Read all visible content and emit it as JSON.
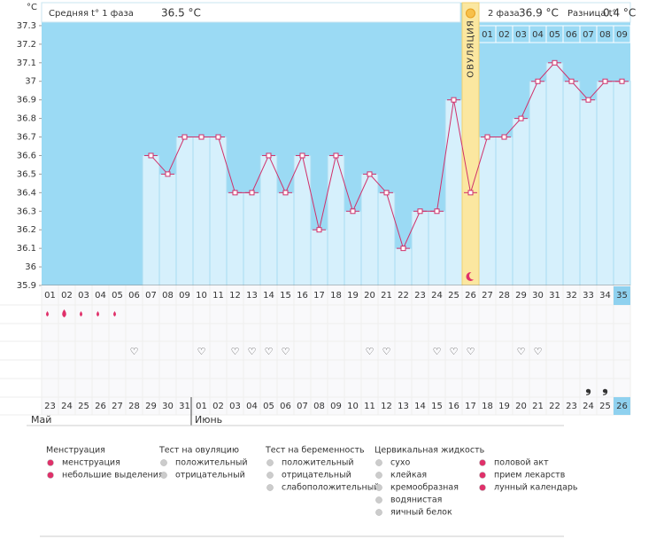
{
  "chart_data": {
    "type": "line",
    "y_unit": "°C",
    "phase1_label": "Средняя t° 1 фаза",
    "phase1_value": "36.5 °C",
    "ovulation_label": "ОВУЛЯЦИЯ",
    "ovulation_day": "26",
    "phase2_label": "2 фаза",
    "phase2_value": "36.9 °C",
    "diff_label": "Разница t°",
    "diff_value": "0.4 °C",
    "phase2_days": [
      "01",
      "02",
      "03",
      "04",
      "05",
      "06",
      "07",
      "08",
      "09"
    ],
    "categories": [
      "01",
      "02",
      "03",
      "04",
      "05",
      "06",
      "07",
      "08",
      "09",
      "10",
      "11",
      "12",
      "13",
      "14",
      "15",
      "16",
      "17",
      "18",
      "19",
      "20",
      "21",
      "22",
      "23",
      "24",
      "25",
      "26",
      "27",
      "28",
      "29",
      "30",
      "31",
      "32",
      "33",
      "34",
      "35"
    ],
    "values": [
      null,
      null,
      null,
      null,
      null,
      null,
      36.6,
      36.5,
      36.7,
      36.7,
      36.7,
      36.4,
      36.4,
      36.6,
      36.4,
      36.6,
      36.2,
      36.6,
      36.3,
      36.5,
      36.4,
      36.1,
      36.3,
      36.3,
      36.9,
      36.4,
      36.7,
      36.7,
      36.8,
      37,
      37.1,
      37,
      36.9,
      37,
      37
    ],
    "color": "#d0306a",
    "ylim": [
      35.9,
      37.4
    ],
    "yticks": [
      35.9,
      36,
      36.1,
      36.2,
      36.3,
      36.4,
      36.5,
      36.6,
      36.7,
      36.8,
      36.9,
      37,
      37.1,
      37.2,
      37.3
    ],
    "dates": [
      "23",
      "24",
      "25",
      "26",
      "27",
      "28",
      "29",
      "30",
      "31",
      "01",
      "02",
      "03",
      "04",
      "05",
      "06",
      "07",
      "08",
      "09",
      "10",
      "11",
      "12",
      "13",
      "14",
      "15",
      "16",
      "17",
      "18",
      "19",
      "20",
      "21",
      "22",
      "23",
      "24",
      "25",
      "26"
    ],
    "weekend": [
      false,
      false,
      true,
      true,
      false,
      false,
      false,
      false,
      false,
      true,
      true,
      false,
      false,
      false,
      false,
      false,
      true,
      true,
      false,
      false,
      false,
      false,
      false,
      true,
      true,
      false,
      false,
      false,
      false,
      false,
      true,
      true,
      false,
      false,
      false
    ],
    "months": [
      {
        "label": "Май",
        "index": 0
      },
      {
        "label": "Июнь",
        "index": 9
      }
    ],
    "menstruation_days": [
      "01",
      "02",
      "03",
      "04",
      "05"
    ],
    "heavy_days": [
      "02"
    ],
    "intercourse_days": [
      "06",
      "10",
      "12",
      "13",
      "14",
      "15",
      "20",
      "21",
      "24",
      "25",
      "26",
      "29",
      "30"
    ],
    "cervical_days": [
      "33",
      "34"
    ]
  },
  "legend": {
    "columns": [
      {
        "title": "Менструация",
        "items": [
          "менструация",
          "небольшие выделения"
        ]
      },
      {
        "title": "Тест на овуляцию",
        "items": [
          "положительный",
          "отрицательный"
        ]
      },
      {
        "title": "Тест на беременность",
        "items": [
          "положительный",
          "отрицательный",
          "слабоположительный"
        ]
      },
      {
        "title": "Цервикальная жидкость",
        "items": [
          "сухо",
          "клейкая",
          "кремообразная",
          "водянистая",
          "яичный белок"
        ]
      },
      {
        "items": [
          "половой акт",
          "прием лекарств",
          "лунный календарь"
        ]
      }
    ]
  }
}
